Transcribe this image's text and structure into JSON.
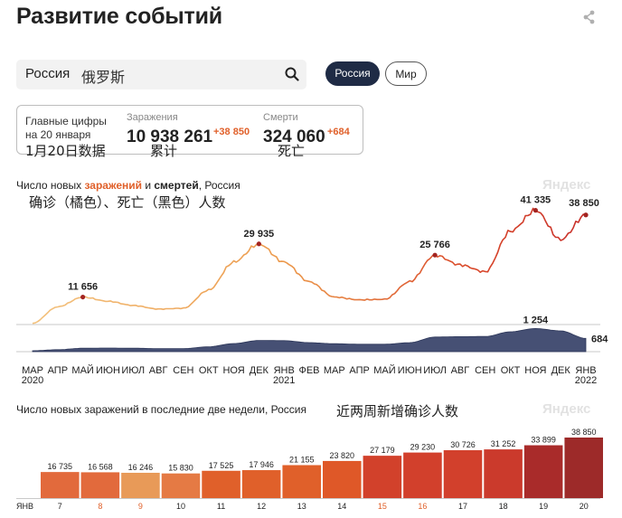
{
  "header": {
    "title": "Развитие событий",
    "share_icon": "share-icon"
  },
  "search": {
    "value": "Россия",
    "annotation": "俄罗斯",
    "icon": "search-icon"
  },
  "filters": {
    "russia_label": "Россия",
    "world_label": "Мир",
    "selected": "Россия"
  },
  "summary": {
    "label_line1": "Главные цифры",
    "label_line2": "на 20 января",
    "label_annotation": "1月20日数据",
    "infections_label": "Заражения",
    "infections_value": "10 938 261",
    "infections_delta": "+38 850",
    "infections_annotation": "累计",
    "deaths_label": "Смерти",
    "deaths_value": "324 060",
    "deaths_delta": "+684",
    "deaths_annotation": "死亡"
  },
  "charts": {
    "main_title_prefix": "Число новых ",
    "main_title_infections": "заражений",
    "main_title_and": " и ",
    "main_title_deaths": "смертей",
    "main_title_suffix": ", Россия",
    "main_annotation": "确诊（橘色）、死亡（黑色）人数",
    "bars_title": "Число новых заражений в последние две недели, Россия",
    "bars_annotation": "近两周新增确诊人数",
    "watermark": "Яндекс"
  },
  "chart_data": [
    {
      "type": "area",
      "title": "Число новых заражений и смертей, Россия",
      "x": [
        "2020-03",
        "2020-04",
        "2020-05",
        "2020-06",
        "2020-07",
        "2020-08",
        "2020-09",
        "2020-10",
        "2020-11",
        "2020-12",
        "2021-01",
        "2021-02",
        "2021-03",
        "2021-04",
        "2021-05",
        "2021-06",
        "2021-07",
        "2021-08",
        "2021-09",
        "2021-10",
        "2021-11",
        "2021-12",
        "2022-01"
      ],
      "x_tick_labels": [
        "МАР",
        "АПР",
        "МАЙ",
        "ИЮН",
        "ИЮЛ",
        "АВГ",
        "СЕН",
        "ОКТ",
        "НОЯ",
        "ДЕК",
        "ЯНВ",
        "ФЕВ",
        "МАР",
        "АПР",
        "МАЙ",
        "ИЮН",
        "ИЮЛ",
        "АВГ",
        "СЕН",
        "ОКТ",
        "НОЯ",
        "ДЕК",
        "ЯНВ"
      ],
      "year_labels": [
        {
          "label": "2020",
          "at": "2020-03"
        },
        {
          "label": "2021",
          "at": "2021-01"
        },
        {
          "label": "2022",
          "at": "2022-01"
        }
      ],
      "series": [
        {
          "name": "заражений",
          "color": "#e0602a",
          "values": [
            100,
            6000,
            9500,
            8000,
            6500,
            5200,
            5500,
            12000,
            22000,
            28500,
            22000,
            15000,
            9500,
            8500,
            8700,
            15000,
            24500,
            21000,
            18500,
            33000,
            40500,
            30000,
            38850
          ]
        },
        {
          "name": "смертей",
          "color": "#2c3659",
          "values": [
            1,
            60,
            140,
            150,
            140,
            120,
            120,
            220,
            400,
            570,
            560,
            450,
            390,
            360,
            360,
            450,
            760,
            780,
            790,
            1050,
            1230,
            1100,
            684
          ]
        }
      ],
      "annotations": [
        {
          "series": "заражений",
          "x": "2020-05",
          "label": "11 656"
        },
        {
          "series": "заражений",
          "x": "2020-12",
          "label": "29 935"
        },
        {
          "series": "заражений",
          "x": "2021-07",
          "label": "25 766"
        },
        {
          "series": "заражений",
          "x": "2021-11",
          "label": "41 335"
        },
        {
          "series": "заражений",
          "x": "2022-01",
          "label": "38 850"
        },
        {
          "series": "смертей",
          "x": "2021-11",
          "label": "1 254"
        },
        {
          "series": "смертей",
          "x": "2022-01",
          "label": "684"
        }
      ]
    },
    {
      "type": "bar",
      "title": "Число новых заражений в последние две недели, Россия",
      "categories": [
        "7",
        "8",
        "9",
        "10",
        "11",
        "12",
        "13",
        "14",
        "15",
        "16",
        "17",
        "18",
        "19",
        "20"
      ],
      "month_label": "ЯНВ",
      "weekend_categories": [
        "8",
        "9",
        "15",
        "16"
      ],
      "values": [
        16735,
        16568,
        16246,
        15830,
        17525,
        17946,
        21155,
        23820,
        27179,
        29230,
        30726,
        31252,
        33899,
        38850
      ],
      "labels": [
        "16 735",
        "16 568",
        "16 246",
        "15 830",
        "17 525",
        "17 946",
        "21 155",
        "23 820",
        "27 179",
        "29 230",
        "30 726",
        "31 252",
        "33 899",
        "38 850"
      ]
    }
  ]
}
